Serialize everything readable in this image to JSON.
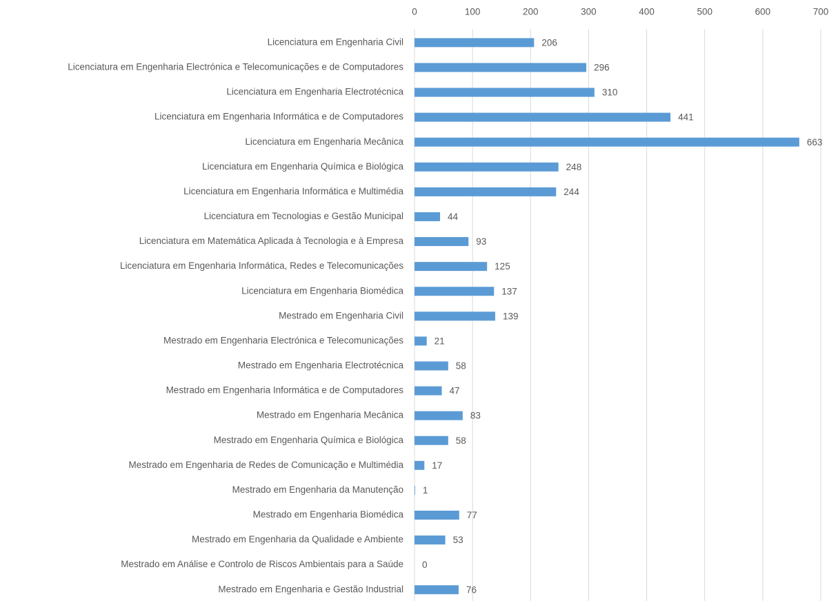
{
  "chart_data": {
    "type": "bar",
    "orientation": "horizontal",
    "categories": [
      "Licenciatura em Engenharia Civil",
      "Licenciatura em Engenharia Electrónica e Telecomunicações e de Computadores",
      "Licenciatura em Engenharia Electrotécnica",
      "Licenciatura em Engenharia Informática e de Computadores",
      "Licenciatura em Engenharia Mecânica",
      "Licenciatura em Engenharia Química e Biológica",
      "Licenciatura em Engenharia Informática e Multimédia",
      "Licenciatura em Tecnologias e Gestão Municipal",
      "Licenciatura em Matemática Aplicada à Tecnologia e à Empresa",
      "Licenciatura em Engenharia Informática, Redes e Telecomunicações",
      "Licenciatura em Engenharia Biomédica",
      "Mestrado em Engenharia Civil",
      "Mestrado em Engenharia Electrónica e Telecomunicações",
      "Mestrado em Engenharia Electrotécnica",
      "Mestrado em Engenharia Informática e de Computadores",
      "Mestrado em Engenharia Mecânica",
      "Mestrado em Engenharia Química e Biológica",
      "Mestrado em Engenharia de Redes de Comunicação e Multimédia",
      "Mestrado em Engenharia da Manutenção",
      "Mestrado em Engenharia Biomédica",
      "Mestrado em Engenharia da Qualidade e Ambiente",
      "Mestrado em Análise e Controlo de Riscos Ambientais para a Saúde",
      "Mestrado em Engenharia e Gestão Industrial"
    ],
    "values": [
      206,
      296,
      310,
      441,
      663,
      248,
      244,
      44,
      93,
      125,
      137,
      139,
      21,
      58,
      47,
      83,
      58,
      17,
      1,
      77,
      53,
      0,
      76
    ],
    "color": "#5b9bd5",
    "xlim": [
      0,
      700
    ],
    "xticks": [
      0,
      100,
      200,
      300,
      400,
      500,
      600,
      700
    ],
    "grid": true
  }
}
